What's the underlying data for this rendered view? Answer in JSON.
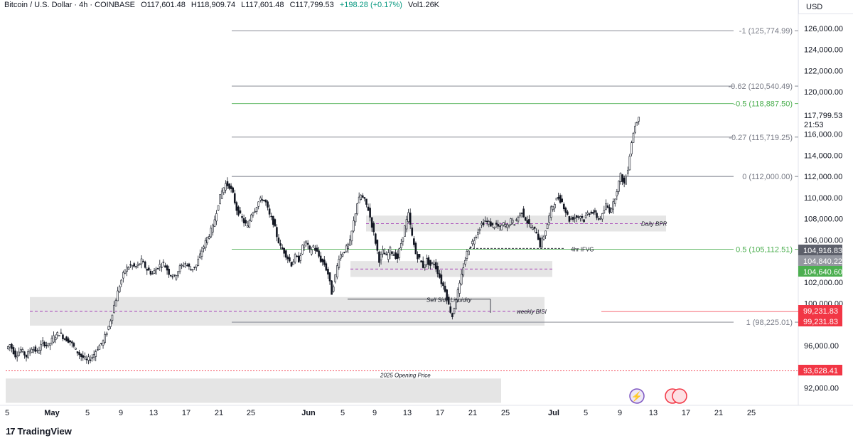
{
  "header": {
    "symbol": "Bitcoin / U.S. Dollar · 4h · COINBASE",
    "open": "O117,601.48",
    "high": "H118,909.74",
    "low": "L117,601.48",
    "close": "C117,799.53",
    "change": "+198.28 (+0.17%)",
    "volume": "Vol1.26K"
  },
  "currency": "USD",
  "branding": {
    "logo_text": "TradingView"
  },
  "colors": {
    "up": "#089981",
    "down": "#131722",
    "fib_green": "#4caf50",
    "fib_gray": "#787b86",
    "red": "#f23645",
    "zone": "#e0e0e0",
    "purple": "#9c27b0"
  },
  "icons": [
    "lightning-circle-icon",
    "us-flag-calendar-icon"
  ],
  "chart_data": {
    "type": "candlestick",
    "title": "",
    "xlabel": "",
    "ylabel": "",
    "ylim": [
      90500,
      127200
    ],
    "grid": false,
    "x_ticks": [
      "5",
      "May",
      "5",
      "9",
      "13",
      "17",
      "21",
      "25",
      "Jun",
      "5",
      "9",
      "13",
      "17",
      "21",
      "25",
      "Jul",
      "5",
      "9",
      "13",
      "17",
      "21",
      "25"
    ],
    "y_ticks": [
      "126,000.00",
      "124,000.00",
      "122,000.00",
      "120,000.00",
      "116,000.00",
      "114,000.00",
      "112,000.00",
      "110,000.00",
      "108,000.00",
      "106,000.00",
      "102,000.00",
      "100,000.00",
      "96,000.00",
      "92,000.00"
    ],
    "last_price": {
      "value": 117799.53,
      "label": "117,799.53",
      "countdown": "21:53"
    },
    "price_tags": [
      {
        "label": "104,916.83",
        "value": 104916.83,
        "color": "#5d606b"
      },
      {
        "label": "104,840.22",
        "value": 104840.22,
        "color": "#9598a1"
      },
      {
        "label": "104,640.60",
        "value": 104640.6,
        "color": "#4caf50"
      },
      {
        "label": "99,231.83",
        "value": 99231.83,
        "color": "#f23645"
      },
      {
        "label": "99,231.83",
        "value": 99231.83,
        "color": "#f23645"
      },
      {
        "label": "93,628.41",
        "value": 93628.41,
        "color": "#f23645"
      }
    ],
    "fib_levels": [
      {
        "label": "-1 (125,774.99)",
        "value": 125774.99,
        "color": "#787b86"
      },
      {
        "label": "-0.62 (120,540.49)",
        "value": 120540.49,
        "color": "#787b86"
      },
      {
        "label": "-0.5 (118,887.50)",
        "value": 118887.5,
        "color": "#4caf50"
      },
      {
        "label": "-0.27 (115,719.25)",
        "value": 115719.25,
        "color": "#787b86"
      },
      {
        "label": "0 (112,000.00)",
        "value": 112000.0,
        "color": "#787b86"
      },
      {
        "label": "0.5 (105,112.51)",
        "value": 105112.51,
        "color": "#4caf50"
      },
      {
        "label": "1 (98,225.01)",
        "value": 98225.01,
        "color": "#787b86"
      }
    ],
    "zones": [
      {
        "label": "Daily BPR",
        "y_low": 106800,
        "y_high": 108300
      },
      {
        "label": "",
        "y_low": 102500,
        "y_high": 104000
      },
      {
        "label": "weekly BISI",
        "y_low": 97900,
        "y_high": 100600
      },
      {
        "label": "",
        "y_low": 90600,
        "y_high": 92900
      }
    ],
    "annotations": [
      {
        "label": "4hr IFVG",
        "value": 105200
      },
      {
        "label": "Sell Side Liquidity",
        "value": 100400
      },
      {
        "label": "2025 Opening Price",
        "value": 93628.41
      }
    ],
    "series": [
      {
        "close_path": [
          [
            0,
            95700
          ],
          [
            2,
            96100
          ],
          [
            5,
            95100
          ],
          [
            8,
            95600
          ],
          [
            11,
            95000
          ],
          [
            14,
            95800
          ],
          [
            17,
            95400
          ],
          [
            20,
            96300
          ],
          [
            23,
            96000
          ],
          [
            26,
            96800
          ],
          [
            29,
            97200
          ],
          [
            32,
            96700
          ],
          [
            35,
            96400
          ],
          [
            38,
            95600
          ],
          [
            41,
            95000
          ],
          [
            44,
            94600
          ],
          [
            47,
            94900
          ],
          [
            50,
            95800
          ],
          [
            53,
            96400
          ],
          [
            56,
            97800
          ],
          [
            59,
            99800
          ],
          [
            62,
            101700
          ],
          [
            65,
            103200
          ],
          [
            68,
            103600
          ],
          [
            71,
            103400
          ],
          [
            74,
            104000
          ],
          [
            77,
            103200
          ],
          [
            80,
            102800
          ],
          [
            83,
            103500
          ],
          [
            86,
            103800
          ],
          [
            89,
            102900
          ],
          [
            92,
            102500
          ],
          [
            95,
            103400
          ],
          [
            98,
            103800
          ],
          [
            101,
            103200
          ],
          [
            104,
            103600
          ],
          [
            107,
            105000
          ],
          [
            110,
            106200
          ],
          [
            113,
            107200
          ],
          [
            116,
            109500
          ],
          [
            118,
            110600
          ],
          [
            120,
            111300
          ],
          [
            122,
            111100
          ],
          [
            124,
            110300
          ],
          [
            126,
            108900
          ],
          [
            128,
            108300
          ],
          [
            130,
            107700
          ],
          [
            132,
            107200
          ],
          [
            134,
            108500
          ],
          [
            136,
            108900
          ],
          [
            138,
            109600
          ],
          [
            140,
            109900
          ],
          [
            142,
            109500
          ],
          [
            144,
            108300
          ],
          [
            146,
            107700
          ],
          [
            148,
            106400
          ],
          [
            150,
            105300
          ],
          [
            152,
            104900
          ],
          [
            154,
            104300
          ],
          [
            156,
            103700
          ],
          [
            158,
            104400
          ],
          [
            160,
            104100
          ],
          [
            162,
            105300
          ],
          [
            164,
            105800
          ],
          [
            166,
            104900
          ],
          [
            168,
            105400
          ],
          [
            170,
            104800
          ],
          [
            172,
            104100
          ],
          [
            174,
            103700
          ],
          [
            176,
            102800
          ],
          [
            178,
            101000
          ],
          [
            180,
            102600
          ],
          [
            182,
            104400
          ],
          [
            184,
            104800
          ],
          [
            186,
            105200
          ],
          [
            188,
            105800
          ],
          [
            190,
            107700
          ],
          [
            192,
            109500
          ],
          [
            194,
            110200
          ],
          [
            196,
            109700
          ],
          [
            198,
            108900
          ],
          [
            200,
            107400
          ],
          [
            202,
            105800
          ],
          [
            204,
            104100
          ],
          [
            206,
            104900
          ],
          [
            208,
            104400
          ],
          [
            210,
            105100
          ],
          [
            212,
            104600
          ],
          [
            214,
            104300
          ],
          [
            216,
            105700
          ],
          [
            218,
            107200
          ],
          [
            220,
            108400
          ],
          [
            222,
            106300
          ],
          [
            224,
            104700
          ],
          [
            226,
            104200
          ],
          [
            228,
            103500
          ],
          [
            230,
            104100
          ],
          [
            232,
            103600
          ],
          [
            234,
            103800
          ],
          [
            236,
            103000
          ],
          [
            238,
            102000
          ],
          [
            240,
            101300
          ],
          [
            242,
            99800
          ],
          [
            244,
            98800
          ],
          [
            246,
            100500
          ],
          [
            248,
            101700
          ],
          [
            250,
            103500
          ],
          [
            252,
            104800
          ],
          [
            254,
            105500
          ],
          [
            256,
            106100
          ],
          [
            258,
            106900
          ],
          [
            260,
            107500
          ],
          [
            262,
            107800
          ],
          [
            264,
            107600
          ],
          [
            266,
            107300
          ],
          [
            268,
            107400
          ],
          [
            270,
            107100
          ],
          [
            272,
            107500
          ],
          [
            274,
            107300
          ],
          [
            276,
            107800
          ],
          [
            278,
            107600
          ],
          [
            280,
            108200
          ],
          [
            282,
            108700
          ],
          [
            284,
            108000
          ],
          [
            286,
            107400
          ],
          [
            288,
            107000
          ],
          [
            290,
            106800
          ],
          [
            292,
            105500
          ],
          [
            294,
            106400
          ],
          [
            296,
            107500
          ],
          [
            298,
            108900
          ],
          [
            300,
            109600
          ],
          [
            302,
            110000
          ],
          [
            304,
            109600
          ],
          [
            306,
            108700
          ],
          [
            308,
            107900
          ],
          [
            310,
            108100
          ],
          [
            312,
            108200
          ],
          [
            314,
            108300
          ],
          [
            316,
            107900
          ],
          [
            318,
            108500
          ],
          [
            320,
            108700
          ],
          [
            322,
            108400
          ],
          [
            324,
            108000
          ],
          [
            326,
            108300
          ],
          [
            328,
            109300
          ],
          [
            330,
            108800
          ],
          [
            332,
            109400
          ],
          [
            334,
            110800
          ],
          [
            336,
            112100
          ],
          [
            338,
            111300
          ],
          [
            340,
            112800
          ],
          [
            342,
            115300
          ],
          [
            344,
            116900
          ],
          [
            346,
            117800
          ]
        ],
        "x_range": [
          0,
          346
        ]
      }
    ]
  }
}
